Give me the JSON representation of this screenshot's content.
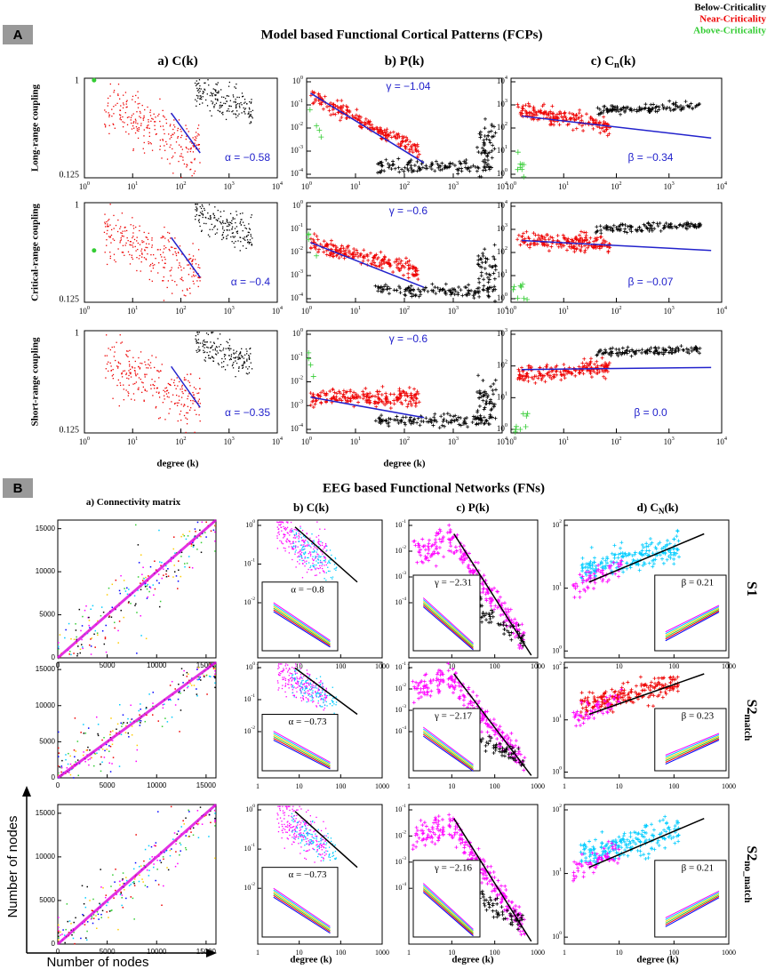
{
  "legend": [
    "Below-Criticality",
    "Near-Criticality",
    "Above-Criticality"
  ],
  "panel_a": {
    "label": "A",
    "title": "Model based Functional Cortical Patterns (FCPs)",
    "columns": [
      {
        "text": "a)  C(k)"
      },
      {
        "text": "b)  P(k)"
      },
      {
        "text": "c)  C",
        "sub": "n",
        "tail": "(k)"
      }
    ],
    "rows": [
      "Long-range coupling",
      "Critical-range coupling",
      "Short-range coupling"
    ],
    "base": "10",
    "x_exponents": [
      "0",
      "1",
      "2",
      "3",
      "4"
    ],
    "ck_yticks": [
      "1",
      "0.125"
    ],
    "p_exponents": [
      "0",
      "-1",
      "-2",
      "-3",
      "-4"
    ],
    "cn_exponents": [
      [
        "4",
        "3",
        "2",
        "1",
        "0"
      ],
      [
        "4",
        "3",
        "2",
        "1",
        "0"
      ],
      [
        "3",
        "2",
        "1",
        "0"
      ]
    ],
    "alpha": [
      "α = −0.58",
      "α = −0.4",
      "α = −0.35"
    ],
    "gamma": [
      "γ = −1.04",
      "γ = −0.6",
      "γ = −0.6"
    ],
    "beta": [
      "β = −0.34",
      "β = −0.07",
      "β = 0.0"
    ],
    "x_label": "degree (k)"
  },
  "panel_b": {
    "label": "B",
    "title": "EEG based Functional Networks (FNs)",
    "columns": [
      {
        "text": "a) Connectivity matrix"
      },
      {
        "text": "b)  C(k)"
      },
      {
        "text": "c)  P(k)"
      },
      {
        "text": "d)  C",
        "sub": "N",
        "tail": "(k)"
      }
    ],
    "rows": [
      {
        "text": "S1"
      },
      {
        "text": "S2",
        "sub": "match"
      },
      {
        "text": "S2",
        "sub": "no_match"
      }
    ],
    "matrix_lim": [
      0,
      16000
    ],
    "matrix_ticks": [
      0,
      5000,
      10000,
      15000
    ],
    "degree_ticks": [
      "1",
      "10",
      "100",
      "1000"
    ],
    "base": "10",
    "ck_exponents": [
      "0",
      "-1",
      "-2"
    ],
    "p_exponents": [
      "-1",
      "-2",
      "-3",
      "-4"
    ],
    "cn_exponents": [
      "2",
      "1",
      "0"
    ],
    "alpha": [
      "α = −0.8",
      "α = −0.73",
      "α = −0.73"
    ],
    "gamma": [
      "γ = −2.31",
      "γ = −2.17",
      "γ = −2.16"
    ],
    "beta": [
      "β = 0.21",
      "β = 0.23",
      "β = 0.21"
    ],
    "x_label": "degree (k)",
    "axis_label": "Number of nodes"
  }
}
